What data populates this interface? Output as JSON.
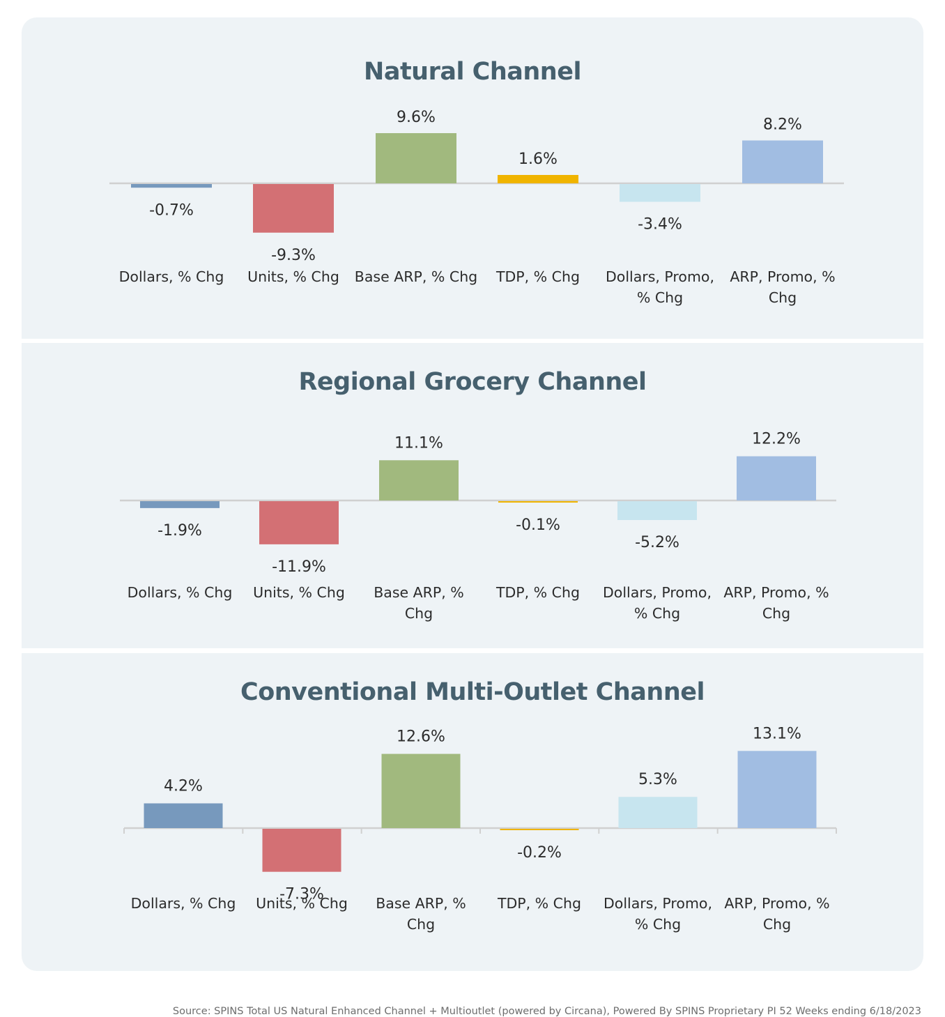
{
  "colors": {
    "background": "#eef3f6",
    "title": "#46606e",
    "text": "#2b2b2b",
    "axis": "#d0d0d0",
    "source_text": "#6d6d6d"
  },
  "chart_data": [
    {
      "type": "bar",
      "title": "Natural Channel",
      "categories": [
        "Dollars, % Chg",
        "Units, % Chg",
        "Base ARP, % Chg",
        "TDP, % Chg",
        "Dollars, Promo, % Chg",
        "ARP, Promo, % Chg"
      ],
      "values": [
        -0.7,
        -9.3,
        9.6,
        1.6,
        -3.4,
        8.2
      ],
      "value_labels": [
        "-0.7%",
        "-9.3%",
        "9.6%",
        "1.6%",
        "-3.4%",
        "8.2%"
      ],
      "colors": [
        "#7799bd",
        "#d37074",
        "#a1b97e",
        "#f0b400",
        "#c7e5ef",
        "#a1bde2"
      ],
      "ylim": [
        -10,
        10
      ],
      "grid": false,
      "legend": "none"
    },
    {
      "type": "bar",
      "title": "Regional Grocery Channel",
      "categories": [
        "Dollars, % Chg",
        "Units, % Chg",
        "Base ARP, % Chg",
        "TDP, % Chg",
        "Dollars, Promo, % Chg",
        "ARP, Promo, % Chg"
      ],
      "values": [
        -1.9,
        -11.9,
        11.1,
        -0.1,
        -5.2,
        12.2
      ],
      "value_labels": [
        "-1.9%",
        "-11.9%",
        "11.1%",
        "-0.1%",
        "-5.2%",
        "12.2%"
      ],
      "colors": [
        "#7799bd",
        "#d37074",
        "#a1b97e",
        "#f0b400",
        "#c7e5ef",
        "#a1bde2"
      ],
      "ylim": [
        -12,
        13
      ],
      "grid": false,
      "legend": "none"
    },
    {
      "type": "bar",
      "title": "Conventional Multi-Outlet Channel",
      "categories": [
        "Dollars, % Chg",
        "Units, % Chg",
        "Base ARP, % Chg",
        "TDP, % Chg",
        "Dollars, Promo, % Chg",
        "ARP, Promo, % Chg"
      ],
      "values": [
        4.2,
        -7.3,
        12.6,
        -0.2,
        5.3,
        13.1
      ],
      "value_labels": [
        "4.2%",
        "-7.3%",
        "12.6%",
        "-0.2%",
        "5.3%",
        "13.1%"
      ],
      "colors": [
        "#7799bd",
        "#d37074",
        "#a1b97e",
        "#f0b400",
        "#c7e5ef",
        "#a1bde2"
      ],
      "ylim": [
        -8,
        14
      ],
      "grid": false,
      "legend": "none"
    }
  ],
  "footer": {
    "source": "Source: SPINS Total US Natural Enhanced Channel + Multioutlet (powered by Circana), Powered By SPINS Proprietary PI 52 Weeks ending 6/18/2023"
  }
}
